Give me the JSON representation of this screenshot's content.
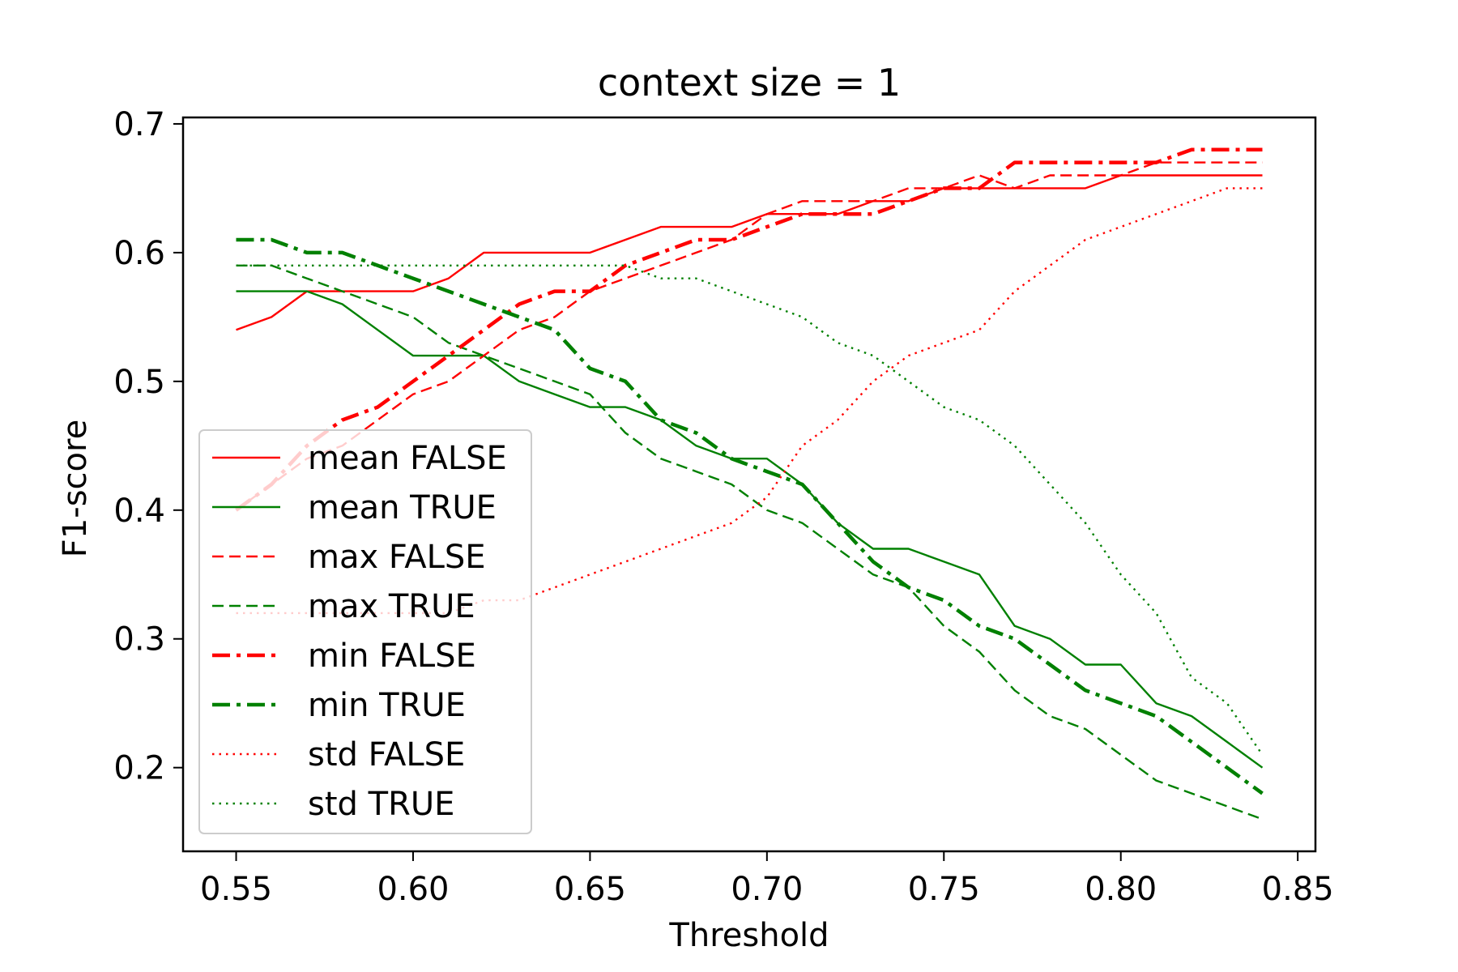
{
  "chart_data": {
    "type": "line",
    "title": "context size = 1",
    "xlabel": "Threshold",
    "ylabel": "F1-score",
    "xlim": [
      0.535,
      0.855
    ],
    "ylim": [
      0.135,
      0.705
    ],
    "xticks": [
      0.55,
      0.6,
      0.65,
      0.7,
      0.75,
      0.8,
      0.85
    ],
    "xtick_labels": [
      "0.55",
      "0.60",
      "0.65",
      "0.70",
      "0.75",
      "0.80",
      "0.85"
    ],
    "yticks": [
      0.2,
      0.3,
      0.4,
      0.5,
      0.6,
      0.7
    ],
    "ytick_labels": [
      "0.2",
      "0.3",
      "0.4",
      "0.5",
      "0.6",
      "0.7"
    ],
    "grid": false,
    "legend_position": "lower-left",
    "x": [
      0.55,
      0.56,
      0.57,
      0.58,
      0.59,
      0.6,
      0.61,
      0.62,
      0.63,
      0.64,
      0.65,
      0.66,
      0.67,
      0.68,
      0.69,
      0.7,
      0.71,
      0.72,
      0.73,
      0.74,
      0.75,
      0.76,
      0.77,
      0.78,
      0.79,
      0.8,
      0.81,
      0.82,
      0.83,
      0.84
    ],
    "series": [
      {
        "name": "mean FALSE",
        "color": "#ff0000",
        "style": "solid",
        "values": [
          0.54,
          0.55,
          0.57,
          0.57,
          0.57,
          0.57,
          0.58,
          0.6,
          0.6,
          0.6,
          0.6,
          0.61,
          0.62,
          0.62,
          0.62,
          0.63,
          0.63,
          0.63,
          0.64,
          0.64,
          0.65,
          0.65,
          0.65,
          0.65,
          0.65,
          0.66,
          0.66,
          0.66,
          0.66,
          0.66
        ]
      },
      {
        "name": "mean TRUE",
        "color": "#008000",
        "style": "solid",
        "values": [
          0.57,
          0.57,
          0.57,
          0.56,
          0.54,
          0.52,
          0.52,
          0.52,
          0.5,
          0.49,
          0.48,
          0.48,
          0.47,
          0.45,
          0.44,
          0.44,
          0.42,
          0.39,
          0.37,
          0.37,
          0.36,
          0.35,
          0.31,
          0.3,
          0.28,
          0.28,
          0.25,
          0.24,
          0.22,
          0.2
        ]
      },
      {
        "name": "max FALSE",
        "color": "#ff0000",
        "style": "dashed",
        "values": [
          0.4,
          0.42,
          0.44,
          0.45,
          0.47,
          0.49,
          0.5,
          0.52,
          0.54,
          0.55,
          0.57,
          0.58,
          0.59,
          0.6,
          0.61,
          0.63,
          0.64,
          0.64,
          0.64,
          0.65,
          0.65,
          0.66,
          0.65,
          0.66,
          0.66,
          0.66,
          0.67,
          0.67,
          0.67,
          0.67
        ]
      },
      {
        "name": "max TRUE",
        "color": "#008000",
        "style": "dashed",
        "values": [
          0.59,
          0.59,
          0.58,
          0.57,
          0.56,
          0.55,
          0.53,
          0.52,
          0.51,
          0.5,
          0.49,
          0.46,
          0.44,
          0.43,
          0.42,
          0.4,
          0.39,
          0.37,
          0.35,
          0.34,
          0.31,
          0.29,
          0.26,
          0.24,
          0.23,
          0.21,
          0.19,
          0.18,
          0.17,
          0.16
        ]
      },
      {
        "name": "min FALSE",
        "color": "#ff0000",
        "style": "dashdot",
        "values": [
          0.4,
          0.42,
          0.45,
          0.47,
          0.48,
          0.5,
          0.52,
          0.54,
          0.56,
          0.57,
          0.57,
          0.59,
          0.6,
          0.61,
          0.61,
          0.62,
          0.63,
          0.63,
          0.63,
          0.64,
          0.65,
          0.65,
          0.67,
          0.67,
          0.67,
          0.67,
          0.67,
          0.68,
          0.68,
          0.68
        ]
      },
      {
        "name": "min TRUE",
        "color": "#008000",
        "style": "dashdot",
        "values": [
          0.61,
          0.61,
          0.6,
          0.6,
          0.59,
          0.58,
          0.57,
          0.56,
          0.55,
          0.54,
          0.51,
          0.5,
          0.47,
          0.46,
          0.44,
          0.43,
          0.42,
          0.39,
          0.36,
          0.34,
          0.33,
          0.31,
          0.3,
          0.28,
          0.26,
          0.25,
          0.24,
          0.22,
          0.2,
          0.18
        ]
      },
      {
        "name": "std FALSE",
        "color": "#ff0000",
        "style": "dotted",
        "values": [
          0.32,
          0.32,
          0.32,
          0.32,
          0.32,
          0.32,
          0.32,
          0.33,
          0.33,
          0.34,
          0.35,
          0.36,
          0.37,
          0.38,
          0.39,
          0.41,
          0.45,
          0.47,
          0.5,
          0.52,
          0.53,
          0.54,
          0.57,
          0.59,
          0.61,
          0.62,
          0.63,
          0.64,
          0.65,
          0.65
        ]
      },
      {
        "name": "std TRUE",
        "color": "#008000",
        "style": "dotted",
        "values": [
          0.59,
          0.59,
          0.59,
          0.59,
          0.59,
          0.59,
          0.59,
          0.59,
          0.59,
          0.59,
          0.59,
          0.59,
          0.58,
          0.58,
          0.57,
          0.56,
          0.55,
          0.53,
          0.52,
          0.5,
          0.48,
          0.47,
          0.45,
          0.42,
          0.39,
          0.35,
          0.32,
          0.27,
          0.25,
          0.21
        ]
      }
    ]
  }
}
